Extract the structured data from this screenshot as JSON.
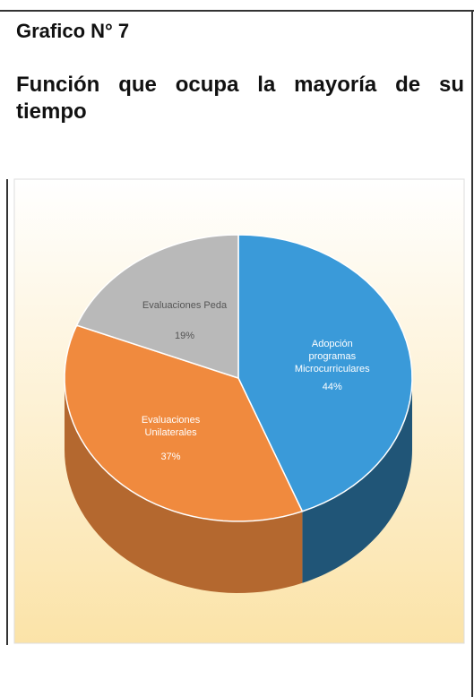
{
  "chart_data": {
    "type": "pie",
    "title": "Grafico N° 7",
    "subtitle": "Función que ocupa la mayoría de su tiempo",
    "categories": [
      "Adopción programas Microcurriculares",
      "Evaluaciones Unilaterales",
      "Evaluaciones Peda"
    ],
    "values": [
      44,
      37,
      19
    ],
    "value_labels": [
      "44%",
      "37%",
      "19%"
    ],
    "colors": [
      "#3a9ad9",
      "#f08a3e",
      "#b9b9b9"
    ]
  }
}
